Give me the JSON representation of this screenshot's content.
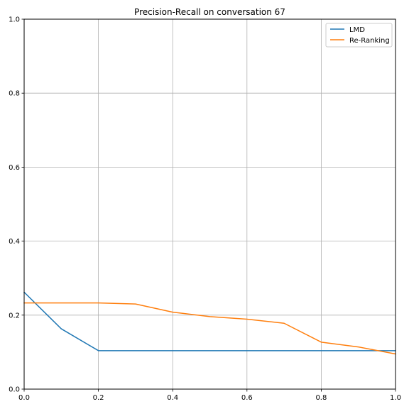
{
  "chart_data": {
    "type": "line",
    "title": "Precision-Recall on conversation 67",
    "xlabel": "",
    "ylabel": "",
    "xlim": [
      0,
      1
    ],
    "ylim": [
      0,
      1
    ],
    "grid": true,
    "legend_position": "top-right",
    "xticks": [
      "0.0",
      "0.2",
      "0.4",
      "0.6",
      "0.8",
      "1.0"
    ],
    "yticks": [
      "0.0",
      "0.2",
      "0.4",
      "0.6",
      "0.8",
      "1.0"
    ],
    "series": [
      {
        "name": "LMD",
        "color": "#1f77b4",
        "x": [
          0.0,
          0.1,
          0.2,
          0.3,
          0.4,
          0.5,
          0.6,
          0.7,
          0.8,
          0.9,
          1.0
        ],
        "y": [
          0.262,
          0.163,
          0.104,
          0.104,
          0.104,
          0.104,
          0.104,
          0.104,
          0.104,
          0.104,
          0.104
        ]
      },
      {
        "name": "Re-Ranking",
        "color": "#ff7f0e",
        "x": [
          0.0,
          0.1,
          0.2,
          0.3,
          0.4,
          0.5,
          0.6,
          0.7,
          0.8,
          0.9,
          1.0
        ],
        "y": [
          0.233,
          0.233,
          0.233,
          0.23,
          0.208,
          0.196,
          0.189,
          0.178,
          0.127,
          0.114,
          0.095
        ]
      }
    ]
  }
}
